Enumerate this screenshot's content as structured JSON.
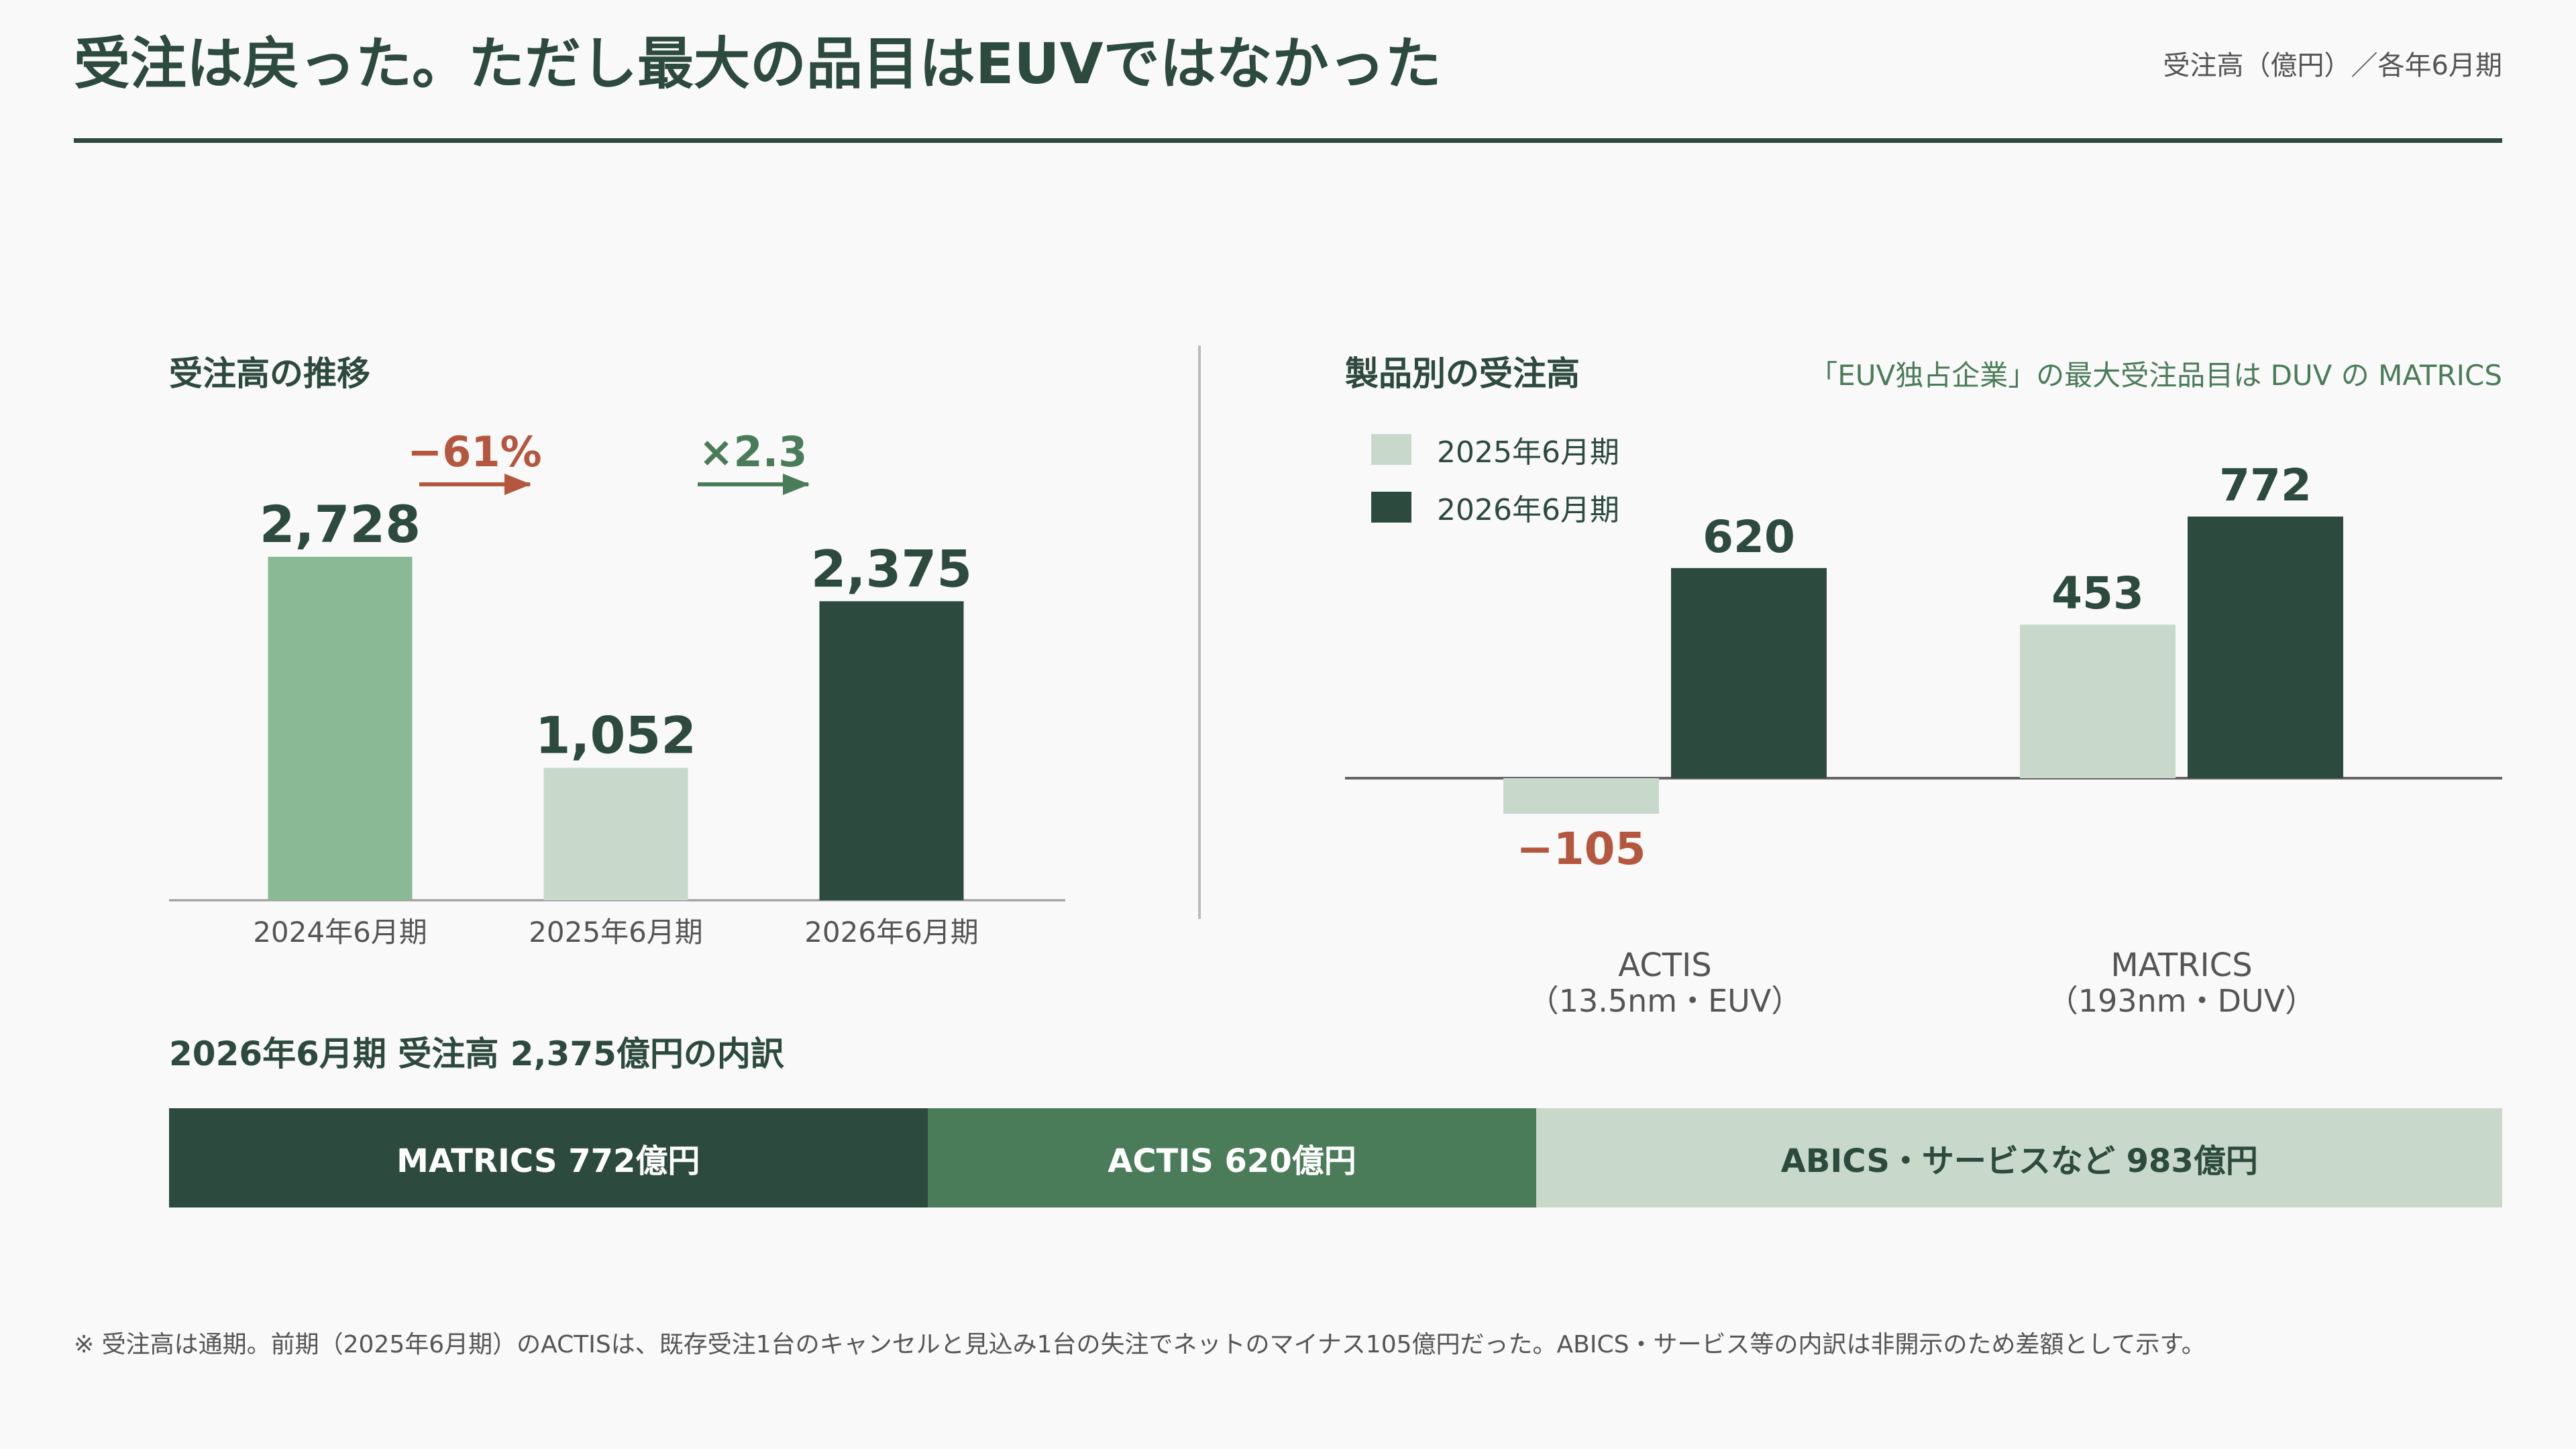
{
  "header": {
    "title": "受注は戻った。ただし最大の品目はEUVではなかった",
    "unit_note": "受注高（億円）／各年6月期"
  },
  "colors": {
    "dark_green": "#2d4a3e",
    "mid_green": "#4a7c59",
    "sage": "#8ab996",
    "pale": "#c8d9cb",
    "negative_red": "#b5573f",
    "axis_gray": "#999999"
  },
  "left_section": {
    "title": "受注高の推移"
  },
  "right_section": {
    "title": "製品別の受注高",
    "note": "「EUV独占企業」の最大受注品目は DUV の MATRICS"
  },
  "bottom_section": {
    "title": "2026年6月期 受注高 2,375億円の内訳"
  },
  "legend": [
    {
      "label": "2025年6月期",
      "color": "#c8d9cb"
    },
    {
      "label": "2026年6月期",
      "color": "#2d4a3e"
    }
  ],
  "chart_data": [
    {
      "type": "bar",
      "title": "受注高の推移",
      "categories": [
        "2024年6月期",
        "2025年6月期",
        "2026年6月期"
      ],
      "values": [
        2728,
        1052,
        2375
      ],
      "value_labels": [
        "2,728",
        "1,052",
        "2,375"
      ],
      "colors": [
        "#8ab996",
        "#c8d9cb",
        "#2d4a3e"
      ],
      "ylim": [
        0,
        2728
      ],
      "changes": [
        {
          "label": "−61%",
          "color": "#b5573f"
        },
        {
          "label": "×2.3",
          "color": "#4a7c59"
        }
      ]
    },
    {
      "type": "bar",
      "title": "製品別の受注高",
      "categories": [
        {
          "name": "ACTIS",
          "sub": "（13.5nm・EUV）"
        },
        {
          "name": "MATRICS",
          "sub": "（193nm・DUV）"
        }
      ],
      "series": [
        {
          "name": "2025年6月期",
          "values": [
            -105,
            453
          ],
          "value_labels": [
            "−105",
            "453"
          ],
          "color": "#c8d9cb"
        },
        {
          "name": "2026年6月期",
          "values": [
            620,
            772
          ],
          "value_labels": [
            "620",
            "772"
          ],
          "color": "#2d4a3e"
        }
      ],
      "ylim": [
        -105,
        772
      ]
    },
    {
      "type": "bar",
      "title": "2026年6月期 受注高 2,375億円の内訳",
      "segments": [
        {
          "label": "MATRICS  772億円",
          "value": 772,
          "color": "#2d4a3e",
          "text_color": "#ffffff"
        },
        {
          "label": "ACTIS  620億円",
          "value": 620,
          "color": "#4a7c59",
          "text_color": "#ffffff"
        },
        {
          "label": "ABICS・サービスなど  983億円",
          "value": 983,
          "color": "#c8d9cb",
          "text_color": "#2d4a3e"
        }
      ]
    }
  ],
  "footnote": "※ 受注高は通期。前期（2025年6月期）のACTISは、既存受注1台のキャンセルと見込み1台の失注でネットのマイナス105億円だった。ABICS・サービス等の内訳は非開示のため差額として示す。"
}
